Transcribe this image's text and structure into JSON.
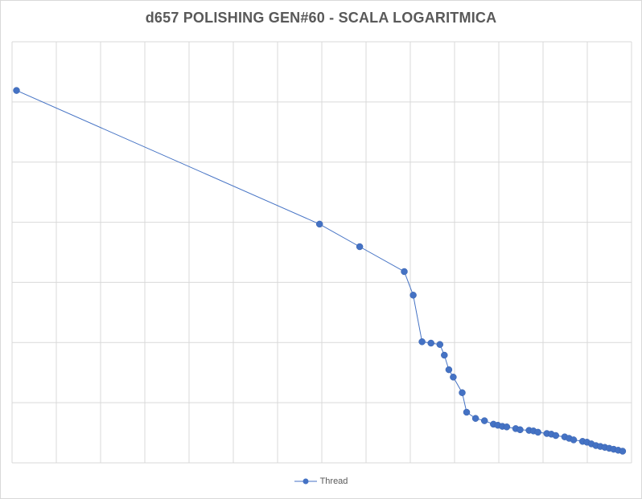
{
  "chart_data": {
    "type": "line",
    "title": "d657 POLISHING GEN#60 - SCALA LOGARITMICA",
    "xlabel": "",
    "ylabel": "",
    "x_scale": "linear",
    "y_scale": "log",
    "grid": true,
    "legend_position": "bottom",
    "series": [
      {
        "name": "Thread",
        "color": "#4472c4",
        "marker": "circle",
        "x": [
          1,
          69,
          78,
          88,
          90,
          92,
          94,
          96,
          97,
          98,
          99,
          101,
          102,
          104,
          106,
          108,
          109,
          110,
          111,
          113,
          114,
          116,
          117,
          118,
          120,
          121,
          122,
          124,
          125,
          126,
          128,
          129,
          130,
          131,
          132,
          133,
          134,
          135,
          136,
          137
        ],
        "y": [
          300000,
          11000,
          6300,
          3400,
          1900,
          600,
          580,
          560,
          430,
          300,
          250,
          170,
          105,
          90,
          85,
          78,
          76,
          74,
          73,
          70,
          68,
          67,
          66,
          64,
          62,
          61,
          59,
          57,
          55,
          53,
          51,
          50,
          48,
          46,
          45,
          44,
          43,
          42,
          41,
          40
        ]
      }
    ]
  },
  "legend": {
    "label": "Thread"
  }
}
